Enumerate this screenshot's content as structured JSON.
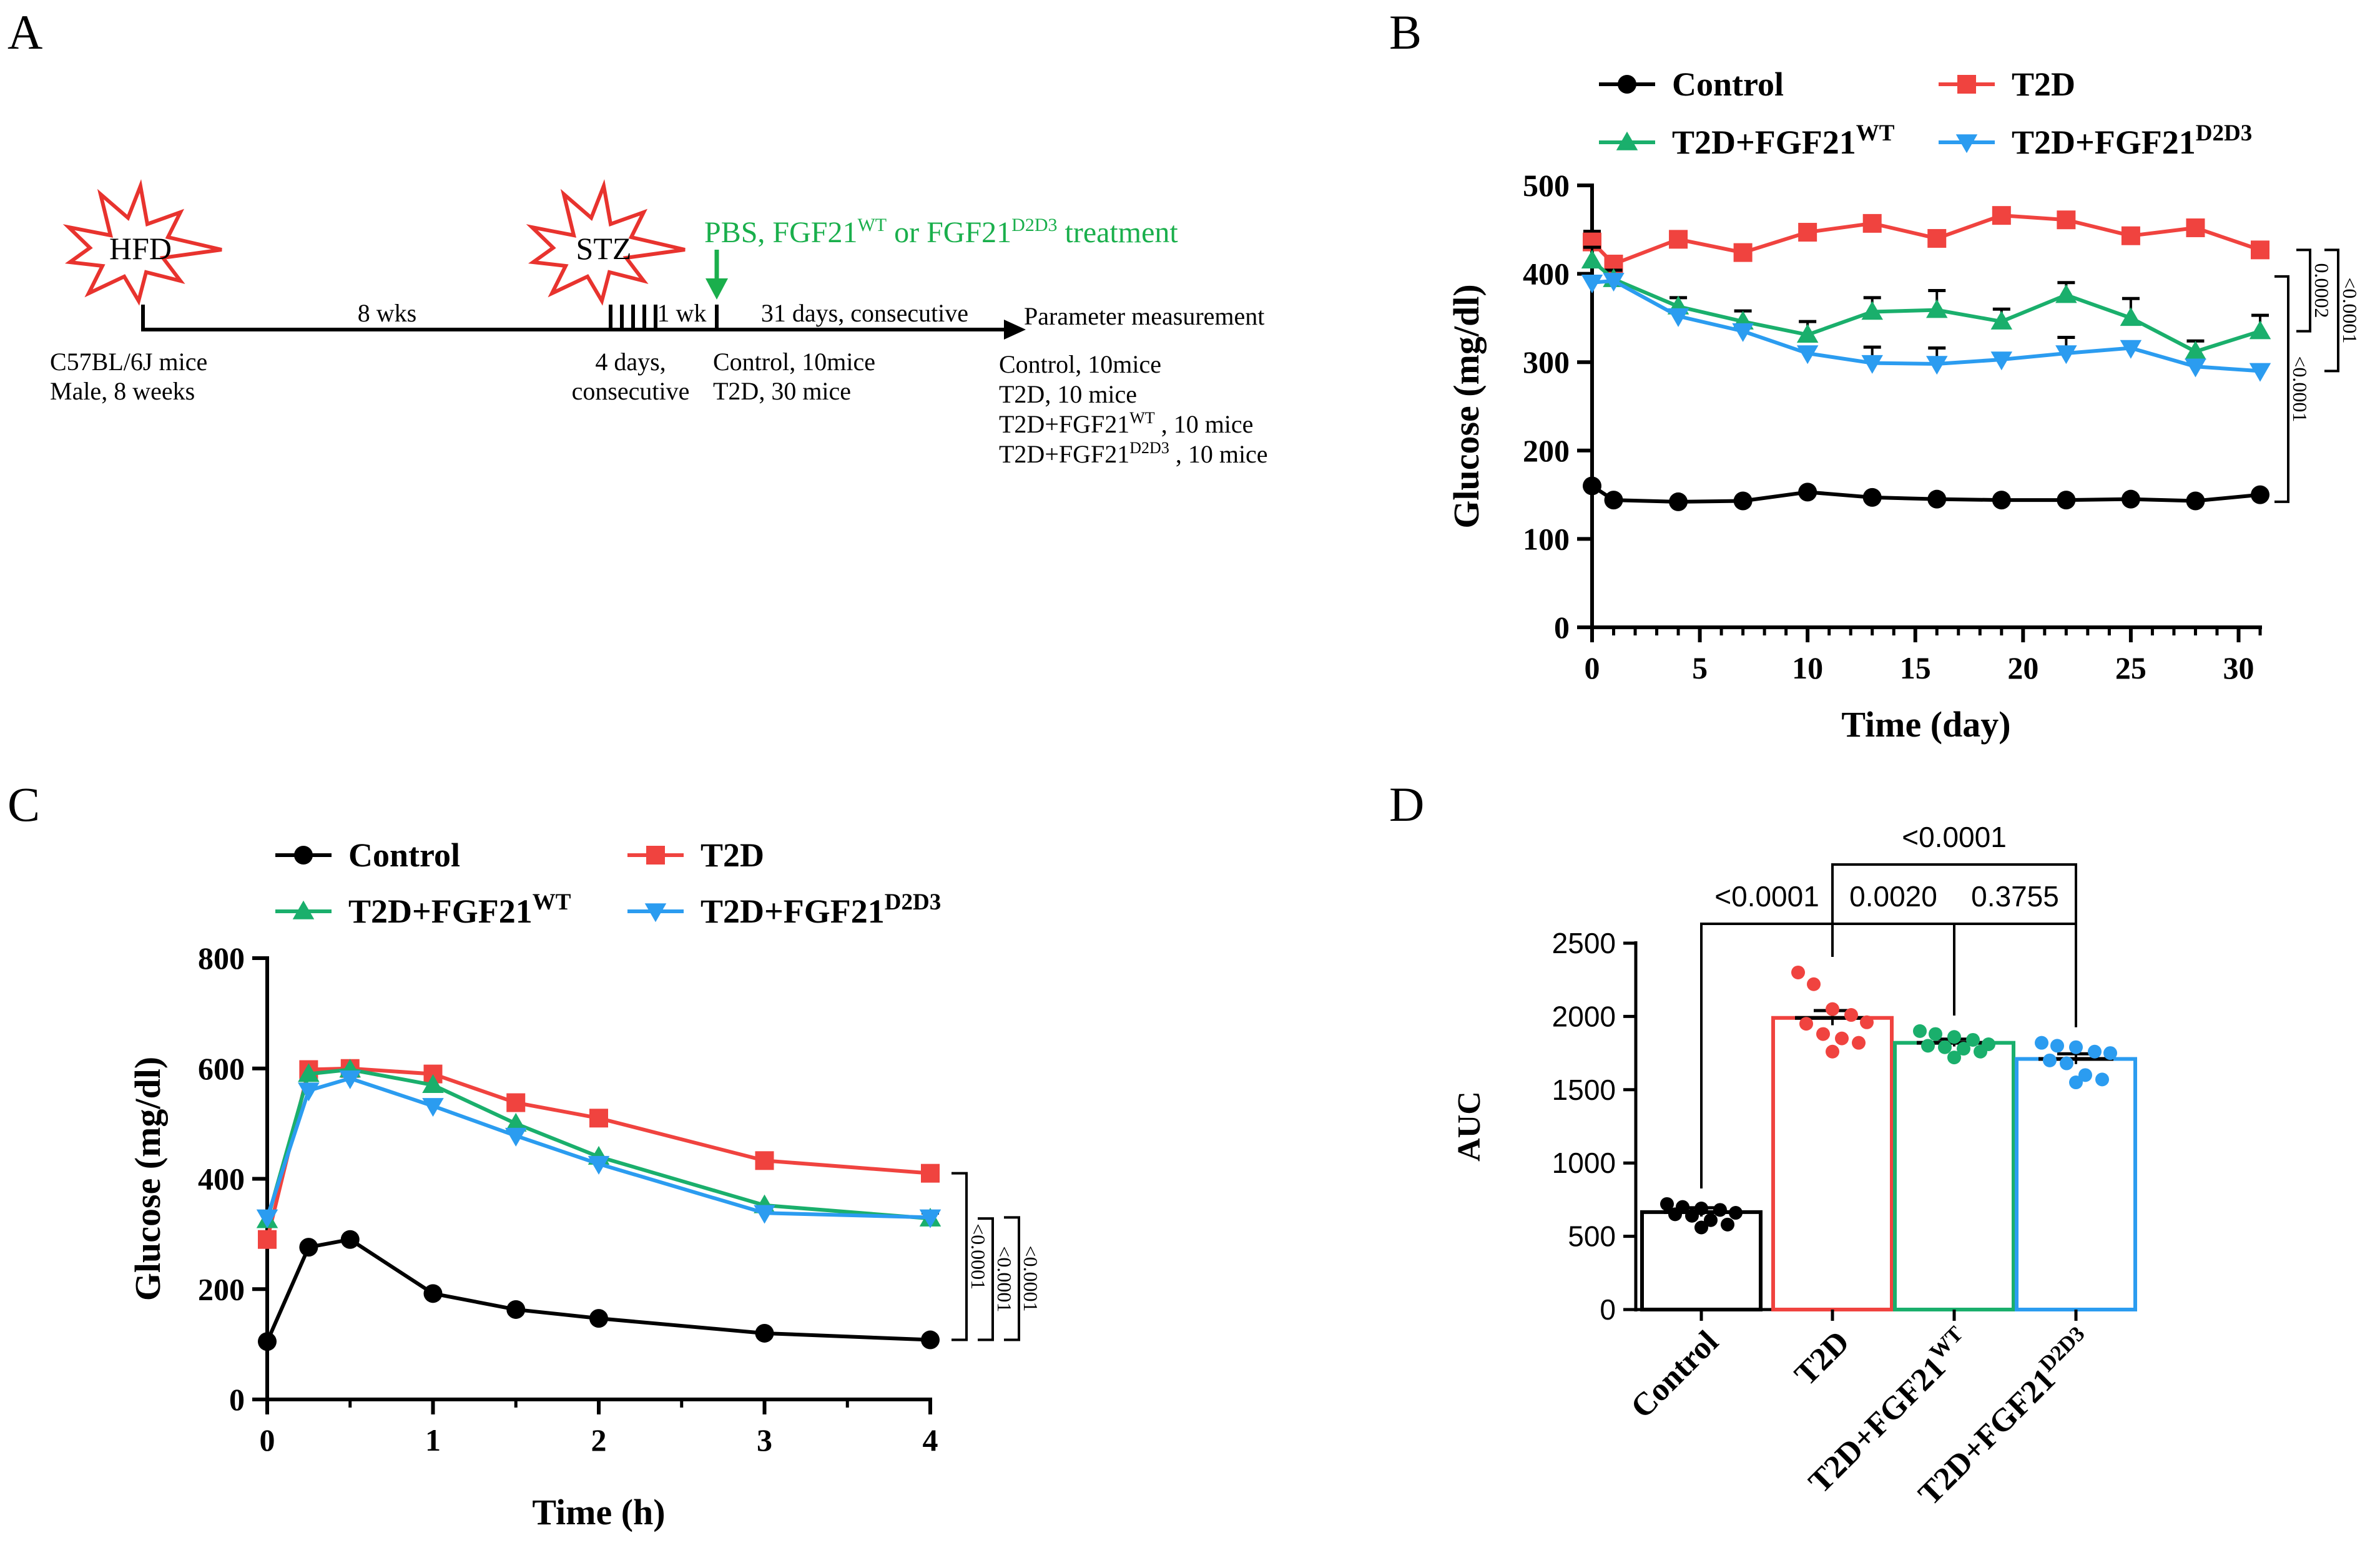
{
  "colors": {
    "control": "#000000",
    "t2d": "#f0433f",
    "wt": "#1aaf6c",
    "d2d3": "#2b9cf0",
    "arrow": "#1aaf4c"
  },
  "panel_labels": {
    "a": "A",
    "b": "B",
    "c": "C",
    "d": "D"
  },
  "panel_a": {
    "hfd": "HFD",
    "stz": "STZ",
    "treatment_base": "PBS, FGF21",
    "treatment_sup1": "WT",
    "treatment_or": " or  FGF21",
    "treatment_sup2": "D2D3",
    "treatment_end": " treatment",
    "duration_1": "8 wks",
    "duration_2": "1 wk",
    "duration_3": "31 days, consecutive",
    "endpoint": "Parameter measurement",
    "start_line1": "C57BL/6J mice",
    "start_line2": "Male, 8 weeks",
    "stz_line1": "4 days,",
    "stz_line2": "consecutive",
    "groups_start": [
      "Control, 10mice",
      "T2D, 30 mice"
    ],
    "groups_end": [
      {
        "text": "Control, 10mice",
        "sup": "",
        "tail": ""
      },
      {
        "text": "T2D, 10 mice",
        "sup": "",
        "tail": ""
      },
      {
        "text": "T2D+FGF21",
        "sup": "WT",
        "tail": " , 10 mice"
      },
      {
        "text": "T2D+FGF21",
        "sup": "D2D3",
        "tail": " , 10 mice"
      }
    ]
  },
  "chart_data": [
    {
      "panel": "B",
      "type": "line",
      "xlabel": "Time (day)",
      "ylabel": "Glucose (mg/dl)",
      "xlim": [
        0,
        31
      ],
      "ylim": [
        0,
        500
      ],
      "xticks": [
        0,
        5,
        10,
        15,
        20,
        25,
        30
      ],
      "yticks": [
        0,
        100,
        200,
        300,
        400,
        500
      ],
      "x": [
        0,
        1,
        4,
        7,
        10,
        13,
        16,
        19,
        22,
        25,
        28,
        31
      ],
      "series": [
        {
          "key": "control",
          "name": "Control",
          "sup": "",
          "marker": "circle",
          "values": [
            160,
            144,
            142,
            143,
            153,
            147,
            145,
            144,
            144,
            145,
            143,
            150
          ],
          "errors": [
            0,
            0,
            0,
            0,
            0,
            0,
            0,
            0,
            0,
            0,
            0,
            0
          ]
        },
        {
          "key": "t2d",
          "name": "T2D",
          "sup": "",
          "marker": "square",
          "values": [
            436,
            411,
            439,
            424,
            447,
            457,
            440,
            466,
            461,
            443,
            452,
            427
          ],
          "errors": [
            12,
            8,
            8,
            8,
            6,
            6,
            6,
            5,
            5,
            7,
            6,
            6
          ]
        },
        {
          "key": "wt",
          "name": "T2D+FGF21",
          "sup": "WT",
          "marker": "triangle-up",
          "values": [
            415,
            394,
            363,
            346,
            331,
            357,
            359,
            346,
            376,
            350,
            312,
            335
          ],
          "errors": [
            15,
            10,
            10,
            12,
            15,
            16,
            22,
            14,
            14,
            22,
            12,
            18
          ]
        },
        {
          "key": "d2d3",
          "name": "T2D+FGF21",
          "sup": "D2D3",
          "marker": "triangle-down",
          "values": [
            390,
            392,
            352,
            335,
            310,
            299,
            298,
            303,
            310,
            316,
            295,
            290
          ],
          "errors": [
            0,
            0,
            0,
            0,
            0,
            18,
            18,
            0,
            18,
            0,
            0,
            0
          ]
        }
      ],
      "significance": [
        "0.0002",
        "<0.0001",
        "<0.0001"
      ]
    },
    {
      "panel": "C",
      "type": "line",
      "xlabel": "Time (h)",
      "ylabel": "Glucose (mg/dl)",
      "xlim": [
        0,
        4
      ],
      "ylim": [
        0,
        800
      ],
      "xticks": [
        0,
        1,
        2,
        3,
        4
      ],
      "yticks": [
        0,
        200,
        400,
        600,
        800
      ],
      "x": [
        0,
        0.25,
        0.5,
        1,
        1.5,
        2,
        3,
        4
      ],
      "series": [
        {
          "key": "control",
          "name": "Control",
          "sup": "",
          "marker": "circle",
          "values": [
            105,
            276,
            290,
            192,
            163,
            147,
            120,
            108
          ],
          "errors": [
            0,
            0,
            0,
            0,
            0,
            0,
            0,
            0
          ]
        },
        {
          "key": "t2d",
          "name": "T2D",
          "sup": "",
          "marker": "square",
          "values": [
            290,
            598,
            600,
            590,
            538,
            510,
            433,
            410
          ],
          "errors": [
            0,
            0,
            0,
            0,
            12,
            0,
            14,
            12
          ]
        },
        {
          "key": "wt",
          "name": "T2D+FGF21",
          "sup": "WT",
          "marker": "triangle-up",
          "values": [
            325,
            590,
            598,
            570,
            500,
            440,
            352,
            328
          ],
          "errors": [
            0,
            0,
            0,
            0,
            0,
            0,
            0,
            0
          ]
        },
        {
          "key": "d2d3",
          "name": "T2D+FGF21",
          "sup": "D2D3",
          "marker": "triangle-down",
          "values": [
            330,
            560,
            582,
            532,
            478,
            427,
            338,
            330
          ],
          "errors": [
            0,
            0,
            0,
            0,
            0,
            0,
            0,
            8
          ]
        }
      ],
      "significance": [
        "<0.0001",
        "<0.0001",
        "<0.0001"
      ]
    },
    {
      "panel": "D",
      "type": "bar",
      "ylabel": "AUC",
      "ylim": [
        0,
        2500
      ],
      "yticks": [
        0,
        500,
        1000,
        1500,
        2000,
        2500
      ],
      "categories": [
        {
          "key": "control",
          "name": "Control",
          "sup": ""
        },
        {
          "key": "t2d",
          "name": "T2D",
          "sup": ""
        },
        {
          "key": "wt",
          "name": "T2D+FGF21",
          "sup": "WT"
        },
        {
          "key": "d2d3",
          "name": "T2D+FGF21",
          "sup": "D2D3"
        }
      ],
      "values": [
        665,
        1990,
        1820,
        1710
      ],
      "errors": [
        30,
        50,
        25,
        35
      ],
      "points": [
        [
          720,
          700,
          690,
          680,
          660,
          650,
          640,
          610,
          580,
          560
        ],
        [
          2300,
          2220,
          2050,
          2010,
          1960,
          1950,
          1880,
          1850,
          1820,
          1760
        ],
        [
          1900,
          1880,
          1860,
          1840,
          1810,
          1800,
          1790,
          1780,
          1760,
          1720
        ],
        [
          1820,
          1800,
          1790,
          1760,
          1750,
          1700,
          1680,
          1600,
          1570,
          1550
        ]
      ],
      "comparisons": [
        {
          "from": 0,
          "to": 1,
          "label": "<0.0001"
        },
        {
          "from": 1,
          "to": 2,
          "label": "0.0020"
        },
        {
          "from": 2,
          "to": 3,
          "label": "0.3755"
        },
        {
          "from": 1,
          "to": 3,
          "label": "<0.0001"
        }
      ]
    }
  ]
}
